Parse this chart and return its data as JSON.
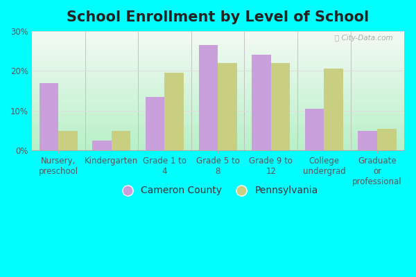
{
  "title": "School Enrollment by Level of School",
  "categories": [
    "Nursery,\npreschool",
    "Kindergarten",
    "Grade 1 to\n4",
    "Grade 5 to\n8",
    "Grade 9 to\n12",
    "College\nundergrad",
    "Graduate\nor\nprofessional"
  ],
  "cameron_county": [
    17.0,
    2.5,
    13.5,
    26.5,
    24.0,
    10.5,
    5.0
  ],
  "pennsylvania": [
    5.0,
    5.0,
    19.5,
    22.0,
    22.0,
    20.5,
    5.5
  ],
  "cameron_color": "#c9a0dc",
  "pennsylvania_color": "#c8cf80",
  "outer_bg": "#00ffff",
  "plot_bg_bottom": "#b8f0c8",
  "plot_bg_top": "#f4faf4",
  "ylim": [
    0,
    30
  ],
  "ytick_labels": [
    "0%",
    "10%",
    "20%",
    "30%"
  ],
  "grid_color": "#dddddd",
  "legend_cameron": "Cameron County",
  "legend_pennsylvania": "Pennsylvania",
  "bar_width": 0.36,
  "title_fontsize": 15,
  "tick_fontsize": 8.5,
  "legend_fontsize": 10,
  "axis_label_color": "#555555",
  "watermark": "ⓘ City-Data.com"
}
